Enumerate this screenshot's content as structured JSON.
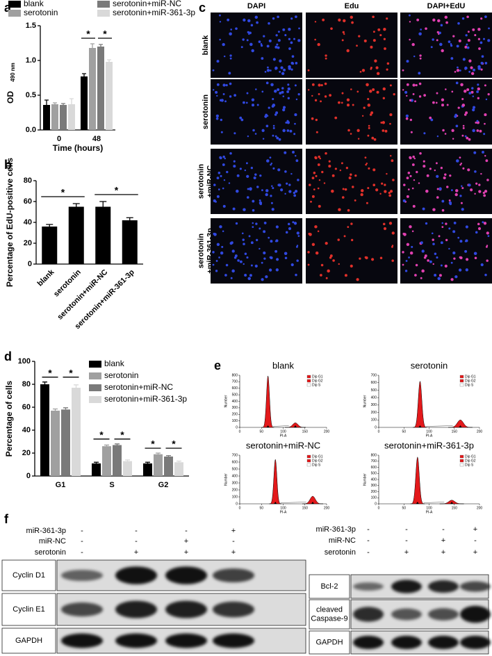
{
  "panel_labels": [
    "a",
    "b",
    "c",
    "d",
    "e",
    "f"
  ],
  "chart_data": [
    {
      "type": "bar",
      "categories": [
        "0",
        "48"
      ],
      "series": [
        {
          "name": "blank",
          "color": "#000000",
          "values": [
            0.36,
            0.77
          ],
          "errors": [
            0.07,
            0.04
          ]
        },
        {
          "name": "serotonin",
          "color": "#a0a0a0",
          "values": [
            0.37,
            1.18
          ],
          "errors": [
            0.02,
            0.06
          ]
        },
        {
          "name": "serotonin+miR-NC",
          "color": "#7a7a7a",
          "values": [
            0.36,
            1.2
          ],
          "errors": [
            0.02,
            0.03
          ]
        },
        {
          "name": "serotonin+miR-361-3p",
          "color": "#d9d9d9",
          "values": [
            0.37,
            0.98
          ],
          "errors": [
            0.08,
            0.03
          ]
        }
      ],
      "ylim": [
        0,
        1.5
      ],
      "yticks": [
        {
          "value": 0,
          "label": "0.0"
        },
        0.5,
        {
          "value": 1,
          "label": "1.0"
        },
        1.5
      ],
      "y_label": "OD",
      "y_label_sub": "490 nm",
      "x_label": "Time (hours)",
      "annotations": [
        "*",
        "*"
      ]
    },
    {
      "type": "bar",
      "categories": [
        "blank",
        "serotonin",
        "serotonin+miR-NC",
        "serotonin+miR-361-3p"
      ],
      "values": [
        36,
        55,
        55,
        42
      ],
      "errors": [
        2,
        3,
        5,
        2.5
      ],
      "color": "#000000",
      "ylim": [
        0,
        80
      ],
      "yticks": [
        0,
        20,
        40,
        60,
        80
      ],
      "y_label": "Percentage of EdU-positive cells",
      "annotations": [
        "*",
        "*"
      ]
    },
    {
      "type": "bar",
      "categories": [
        "G1",
        "S",
        "G2"
      ],
      "series": [
        {
          "name": "blank",
          "color": "#000000",
          "values": [
            80,
            11,
            11
          ],
          "errors": [
            2,
            1,
            1
          ]
        },
        {
          "name": "serotonin",
          "color": "#a0a0a0",
          "values": [
            57,
            26,
            19
          ],
          "errors": [
            1.5,
            1,
            1
          ]
        },
        {
          "name": "serotonin+miR-NC",
          "color": "#7a7a7a",
          "values": [
            58,
            27,
            17
          ],
          "errors": [
            1.5,
            1,
            0.8
          ]
        },
        {
          "name": "serotonin+miR-361-3p",
          "color": "#d9d9d9",
          "values": [
            77,
            13,
            12
          ],
          "errors": [
            2.5,
            1,
            1
          ]
        }
      ],
      "ylim": [
        0,
        100
      ],
      "yticks": [
        0,
        20,
        40,
        60,
        80,
        100
      ],
      "y_label": "Percentage of cells",
      "annotations": [
        "*",
        "*",
        "*",
        "*",
        "*",
        "*"
      ]
    }
  ],
  "microscopy": {
    "columns": [
      "DAPI",
      "Edu",
      "DAPI+EdU"
    ],
    "rows": [
      [
        "blank"
      ],
      [
        "serotonin"
      ],
      [
        "serotonin",
        "+miR-NC"
      ],
      [
        "serotonin",
        "+miR-361-3p"
      ]
    ]
  },
  "flow": {
    "legend": [
      "Dip G1",
      "Dip G2",
      "Dip S"
    ],
    "x_label": "PI-A",
    "y_label": "Number",
    "xlim": [
      0,
      200
    ],
    "xticks": [
      0,
      50,
      100,
      150,
      200
    ],
    "plots": [
      {
        "title": "blank",
        "ylim": [
          0,
          800
        ],
        "yticks": [
          0,
          100,
          200,
          300,
          400,
          500,
          600,
          700,
          800
        ],
        "g1_peak": 65,
        "g1_height": 790,
        "g2_peak": 128,
        "g2_height": 70
      },
      {
        "title": "serotonin",
        "ylim": [
          0,
          700
        ],
        "yticks": [
          0,
          100,
          200,
          300,
          400,
          500,
          600,
          700
        ],
        "g1_peak": 82,
        "g1_height": 620,
        "g2_peak": 162,
        "g2_height": 100
      },
      {
        "title": "serotonin+miR-NC",
        "ylim": [
          0,
          700
        ],
        "yticks": [
          0,
          100,
          200,
          300,
          400,
          500,
          600,
          700
        ],
        "g1_peak": 82,
        "g1_height": 640,
        "g2_peak": 168,
        "g2_height": 110
      },
      {
        "title": "serotonin+miR-361-3p",
        "ylim": [
          0,
          800
        ],
        "yticks": [
          0,
          100,
          200,
          300,
          400,
          500,
          600,
          700,
          800
        ],
        "g1_peak": 77,
        "g1_height": 770,
        "g2_peak": 145,
        "g2_height": 60
      }
    ]
  },
  "western": {
    "left": {
      "conditions": [
        {
          "label": "miR-361-3p",
          "signs": [
            "-",
            "-",
            "-",
            "+"
          ]
        },
        {
          "label": "miR-NC",
          "signs": [
            "-",
            "-",
            "+",
            "-"
          ]
        },
        {
          "label": "serotonin",
          "signs": [
            "-",
            "+",
            "+",
            "+"
          ]
        }
      ],
      "bands": [
        [
          "Cyclin D1"
        ],
        [
          "Cyclin E1"
        ],
        [
          "GAPDH"
        ]
      ]
    },
    "right": {
      "conditions": [
        {
          "label": "miR-361-3p",
          "signs": [
            "-",
            "-",
            "-",
            "+"
          ]
        },
        {
          "label": "miR-NC",
          "signs": [
            "-",
            "-",
            "+",
            "-"
          ]
        },
        {
          "label": "serotonin",
          "signs": [
            "-",
            "+",
            "+",
            "+"
          ]
        }
      ],
      "bands": [
        [
          "Bcl-2"
        ],
        [
          "cleaved",
          "Caspase-9"
        ],
        [
          "GAPDH"
        ]
      ]
    }
  }
}
